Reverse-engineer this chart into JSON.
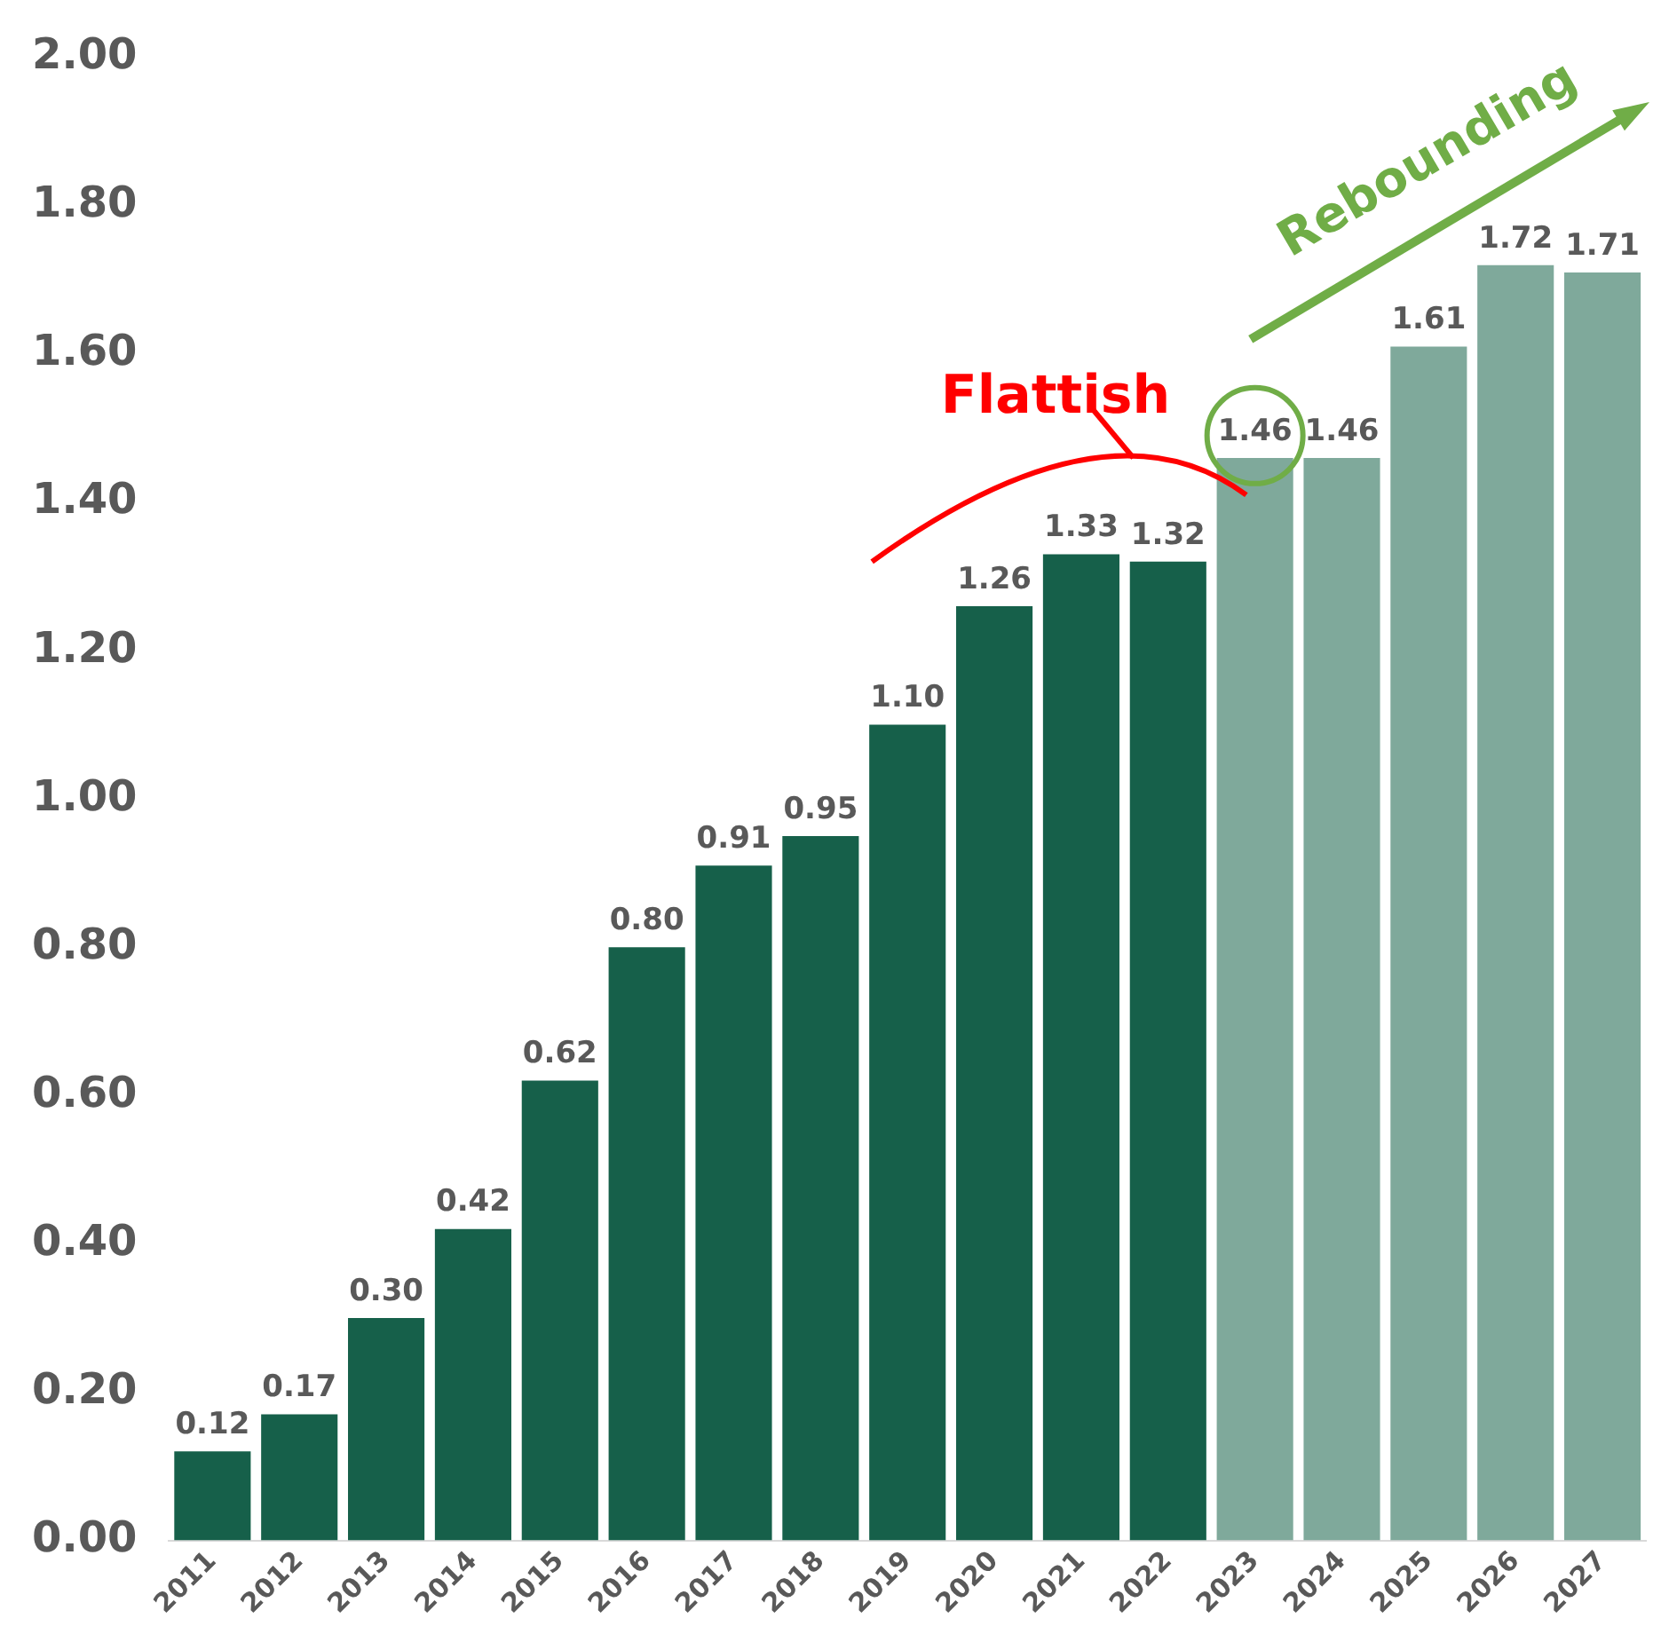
{
  "chart_data": {
    "type": "bar",
    "categories": [
      "2011",
      "2012",
      "2013",
      "2014",
      "2015",
      "2016",
      "2017",
      "2018",
      "2019",
      "2020",
      "2021",
      "2022",
      "2023",
      "2024",
      "2025",
      "2026",
      "2027"
    ],
    "series": [
      {
        "color": "#16604a",
        "values": [
          0.12,
          0.17,
          0.3,
          0.42,
          0.62,
          0.8,
          0.91,
          0.95,
          1.1,
          1.26,
          1.33,
          1.32,
          null,
          null,
          null,
          null,
          null
        ],
        "value_labels": [
          "0.12",
          "0.17",
          "0.30",
          "0.42",
          "0.62",
          "0.80",
          "0.91",
          "0.95",
          "1.10",
          "1.26",
          "1.33",
          "1.32",
          null,
          null,
          null,
          null,
          null
        ]
      },
      {
        "color": "#7fa99b",
        "values": [
          null,
          null,
          null,
          null,
          null,
          null,
          null,
          null,
          null,
          null,
          null,
          null,
          1.46,
          1.46,
          1.61,
          1.72,
          1.71
        ],
        "value_labels": [
          null,
          null,
          null,
          null,
          null,
          null,
          null,
          null,
          null,
          null,
          null,
          null,
          "1.46",
          "1.46",
          "1.61",
          "1.72",
          "1.71"
        ]
      }
    ],
    "stacked": true,
    "ylim": [
      0,
      2
    ],
    "yticks": [
      {
        "value": 0,
        "label": "0.00"
      },
      {
        "value": 0.2,
        "label": "0.20"
      },
      {
        "value": 0.4,
        "label": "0.40"
      },
      {
        "value": 0.6,
        "label": "0.60"
      },
      {
        "value": 0.8,
        "label": "0.80"
      },
      {
        "value": 1,
        "label": "1.00"
      },
      {
        "value": 1.2,
        "label": "1.20"
      },
      {
        "value": 1.4,
        "label": "1.40"
      },
      {
        "value": 1.6,
        "label": "1.60"
      },
      {
        "value": 1.8,
        "label": "1.80"
      },
      {
        "value": 2,
        "label": "2.00"
      }
    ],
    "grid": false,
    "legend": false,
    "annotations": [
      "Flattish",
      "Rebounding"
    ]
  }
}
